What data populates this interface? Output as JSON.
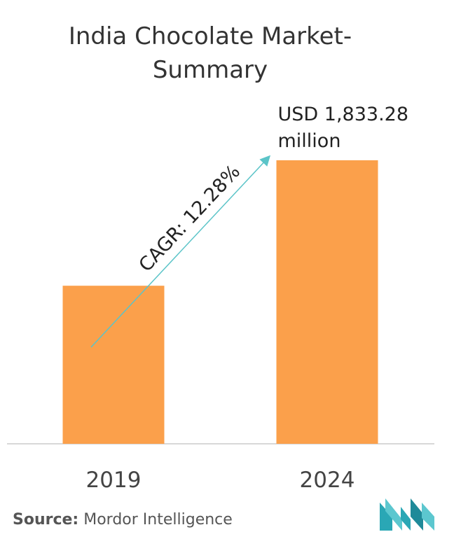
{
  "title_line1": "India Chocolate Market-",
  "title_line2": "Summary",
  "chart_data": {
    "type": "bar",
    "categories": [
      "2019",
      "2024"
    ],
    "values": [
      1022,
      1833.28
    ],
    "value_labels": [
      "",
      "USD 1,833.28 million"
    ],
    "ylim": [
      0,
      2100
    ],
    "annotation": "CAGR: 12.28%",
    "bar_color": "#FBA04B",
    "arrow_color": "#5BC4C8",
    "grid": false
  },
  "source_label": "Source:",
  "source_text": "Mordor Intelligence",
  "logo_icon": "mordor-intelligence-logo-icon"
}
